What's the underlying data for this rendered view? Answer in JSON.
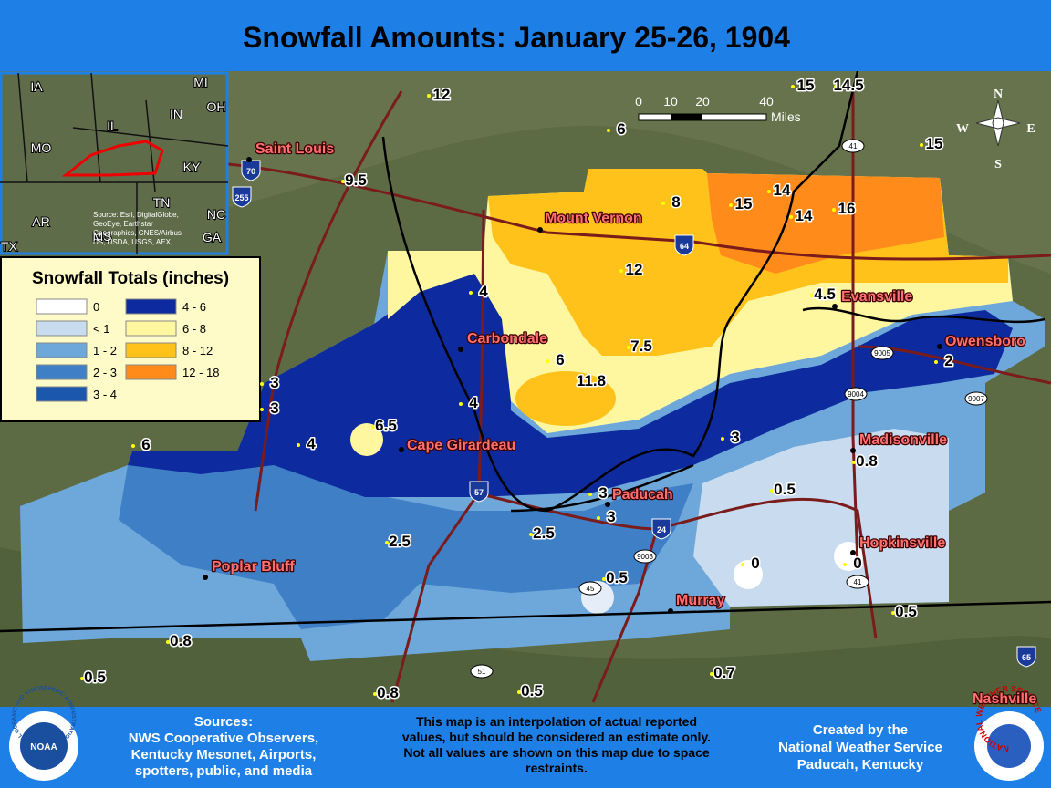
{
  "header": {
    "title": "Snowfall Amounts: January 25-26, 1904"
  },
  "inset": {
    "states": [
      "IA",
      "MI",
      "OH",
      "IN",
      "IL",
      "MO",
      "KY",
      "TN",
      "NC",
      "AR",
      "GA",
      "TX",
      "MS"
    ],
    "attribution": [
      "Source: Esri, DigitalGlobe,",
      "GeoEye, Earthstar",
      "Geographics, CNES/Airbus",
      "DS, USDA, USGS, AEX,"
    ]
  },
  "scale_bar": {
    "labels": [
      "0",
      "10",
      "20",
      "40"
    ],
    "unit": "Miles"
  },
  "compass": [
    "N",
    "E",
    "S",
    "W"
  ],
  "legend": {
    "title": "Snowfall Totals (inches)",
    "items": [
      {
        "label": "0",
        "color": "#ffffff"
      },
      {
        "label": "< 1",
        "color": "#c9dcef"
      },
      {
        "label": "1 - 2",
        "color": "#6ea7da"
      },
      {
        "label": "2 - 3",
        "color": "#3f7fc6"
      },
      {
        "label": "3 - 4",
        "color": "#1b57ad"
      },
      {
        "label": "4 - 6",
        "color": "#0d2b9e"
      },
      {
        "label": "6 - 8",
        "color": "#fff7a0"
      },
      {
        "label": "8 - 12",
        "color": "#ffc21a"
      },
      {
        "label": "12 - 18",
        "color": "#ff8c1a"
      }
    ]
  },
  "cities": [
    "Saint Louis",
    "Mount Vernon",
    "Evansville",
    "Owensboro",
    "Carbondale",
    "Madisonville",
    "Cape Girardeau",
    "Paducah",
    "Hopkinsville",
    "Poplar Bluff",
    "Murray",
    "Nashville"
  ],
  "snowfall_values": [
    "12",
    "6",
    "15",
    "14.5",
    "15",
    "9.5",
    "8",
    "15",
    "14",
    "14",
    "16",
    "12",
    "4",
    "4.5",
    "6",
    "7.5",
    "11.8",
    "3",
    "3",
    "4",
    "2",
    "6.5",
    "4",
    "6",
    "3",
    "0.8",
    "3",
    "3",
    "0.5",
    "2.5",
    "2.5",
    "0.5",
    "0",
    "0",
    "0.5",
    "0.8",
    "0.5",
    "0.7",
    "0.8",
    "0.5"
  ],
  "route_shields": {
    "interstate": [
      "70",
      "255",
      "64",
      "57",
      "24",
      "65"
    ],
    "other": [
      "41",
      "9005",
      "9004",
      "9007",
      "9003",
      "45",
      "41",
      "51"
    ]
  },
  "footer": {
    "sources": [
      "Sources:",
      "NWS Cooperative Observers,",
      "Kentucky Mesonet, Airports,",
      "spotters, public, and media"
    ],
    "disclaimer": [
      "This map is an interpolation of actual reported",
      "values, but should be considered an estimate only.",
      "Not all values are shown on this map due to space",
      "restraints."
    ],
    "credit": [
      "Created by the",
      "National Weather Service",
      "Paducah, Kentucky"
    ],
    "noaa_logo": {
      "text": "NOAA",
      "ring": "NATIONAL OCEANIC AND ATMOSPHERIC ADMINISTRATION · U.S. DEPARTMENT OF COMMERCE"
    },
    "nws_logo": "NATIONAL WEATHER SERVICE"
  }
}
